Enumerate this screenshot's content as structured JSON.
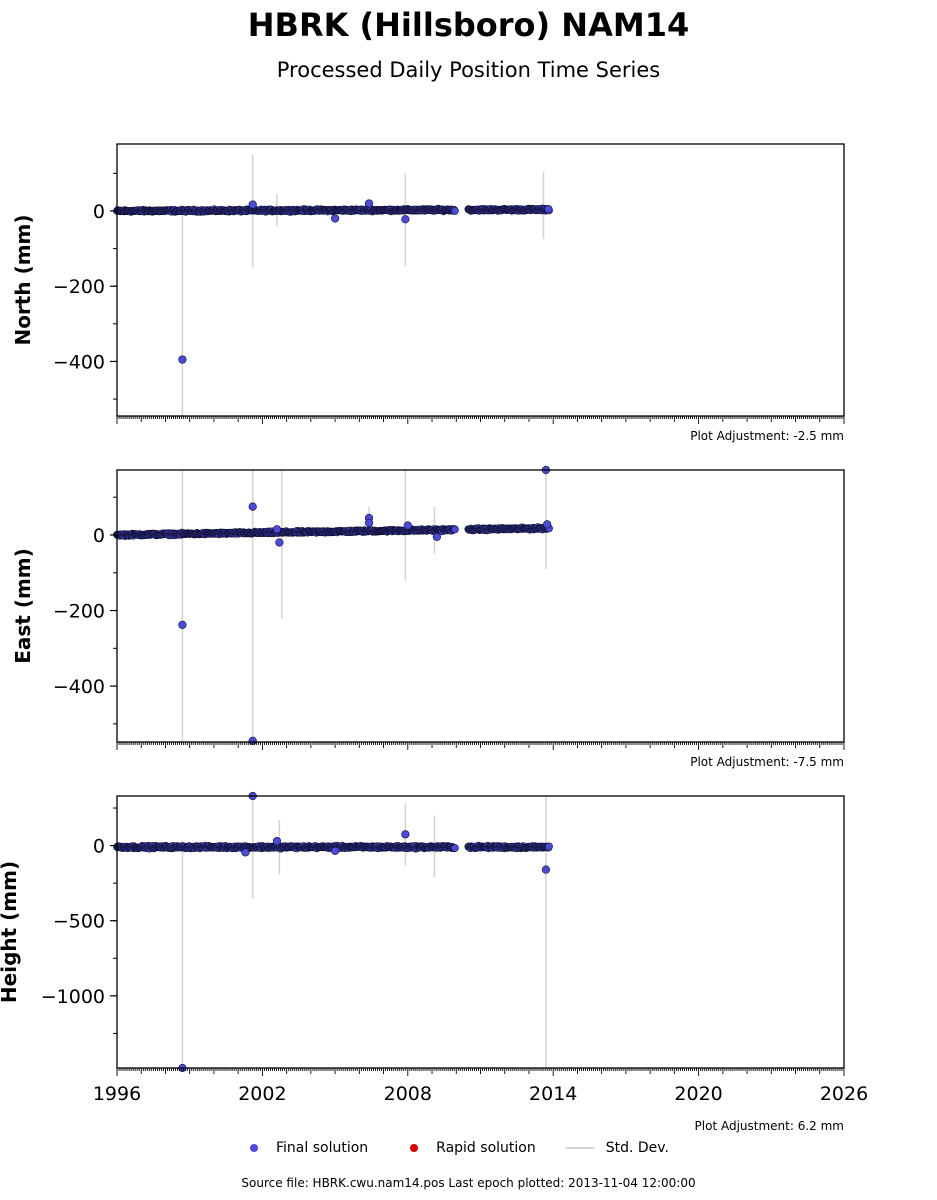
{
  "title": "HBRK (Hillsboro) NAM14",
  "subtitle": "Processed Daily Position Time Series",
  "legend": {
    "final": "Final solution",
    "rapid": "Rapid solution",
    "stddev": "Std. Dev.",
    "final_color": "#4a4adf",
    "rapid_color": "#dd0000",
    "stddev_color": "#d3d3d3"
  },
  "source_text": "Source file: HBRK.cwu.nam14.pos  Last epoch plotted: 2013-11-04 12:00:00",
  "chart_data": [
    {
      "type": "scatter",
      "ylabel": "North (mm)",
      "xlim": [
        1996,
        2026
      ],
      "ylim": [
        -545,
        178
      ],
      "yticks": [
        0,
        -200,
        -400
      ],
      "adjustment": "Plot Adjustment: -2.5 mm",
      "baseline": 0,
      "noise": 4,
      "trend": 0.2,
      "segments": [
        [
          1996.0,
          2009.95
        ],
        [
          2010.5,
          2013.85
        ]
      ],
      "outliers": [
        [
          1998.7,
          -395
        ],
        [
          2001.6,
          17
        ],
        [
          2005.0,
          -20
        ],
        [
          2006.4,
          20
        ],
        [
          2007.9,
          -22
        ],
        [
          2013.8,
          5
        ]
      ],
      "errorbars": [
        [
          1998.7,
          -545,
          0
        ],
        [
          2001.6,
          -150,
          150
        ],
        [
          2002.6,
          -40,
          45
        ],
        [
          2007.9,
          -145,
          100
        ],
        [
          2013.6,
          -75,
          105
        ]
      ]
    },
    {
      "type": "scatter",
      "ylabel": "East (mm)",
      "xlim": [
        1996,
        2026
      ],
      "ylim": [
        -548,
        172
      ],
      "yticks": [
        0,
        -200,
        -400
      ],
      "adjustment": "Plot Adjustment: -7.5 mm",
      "baseline": 0,
      "noise": 4,
      "trend": 1.0,
      "segments": [
        [
          1996.0,
          2009.95
        ],
        [
          2010.5,
          2013.85
        ]
      ],
      "outliers": [
        [
          1998.7,
          -238
        ],
        [
          2001.6,
          75
        ],
        [
          2001.6,
          -545
        ],
        [
          2002.7,
          -20
        ],
        [
          2002.6,
          15
        ],
        [
          2006.4,
          45
        ],
        [
          2006.4,
          32
        ],
        [
          2008.0,
          25
        ],
        [
          2009.2,
          -5
        ],
        [
          2013.7,
          172
        ],
        [
          2013.75,
          28
        ]
      ],
      "errorbars": [
        [
          1998.7,
          -548,
          172
        ],
        [
          2001.6,
          -548,
          172
        ],
        [
          2002.8,
          -220,
          172
        ],
        [
          2006.4,
          10,
          75
        ],
        [
          2007.9,
          -120,
          172
        ],
        [
          2009.1,
          -50,
          75
        ],
        [
          2013.7,
          -90,
          172
        ]
      ]
    },
    {
      "type": "scatter",
      "ylabel": "Height (mm)",
      "xlim": [
        1996,
        2026
      ],
      "ylim": [
        -1480,
        330
      ],
      "yticks": [
        0,
        -500,
        -1000
      ],
      "xticks": [
        1996,
        2002,
        2008,
        2014,
        2020,
        2026
      ],
      "adjustment": "Plot Adjustment: 6.2 mm",
      "baseline": -10,
      "noise": 12,
      "trend": 0,
      "segments": [
        [
          1996.0,
          2009.95
        ],
        [
          2010.5,
          2013.85
        ]
      ],
      "outliers": [
        [
          1998.7,
          -1480
        ],
        [
          2001.6,
          330
        ],
        [
          2001.3,
          -45
        ],
        [
          2002.6,
          30
        ],
        [
          2005.0,
          -35
        ],
        [
          2007.9,
          75
        ],
        [
          2013.7,
          -160
        ]
      ],
      "errorbars": [
        [
          1998.7,
          -1480,
          0
        ],
        [
          2001.6,
          -350,
          330
        ],
        [
          2002.7,
          -190,
          170
        ],
        [
          2007.9,
          -130,
          280
        ],
        [
          2009.1,
          -210,
          200
        ],
        [
          2013.7,
          -1480,
          330
        ]
      ]
    }
  ]
}
